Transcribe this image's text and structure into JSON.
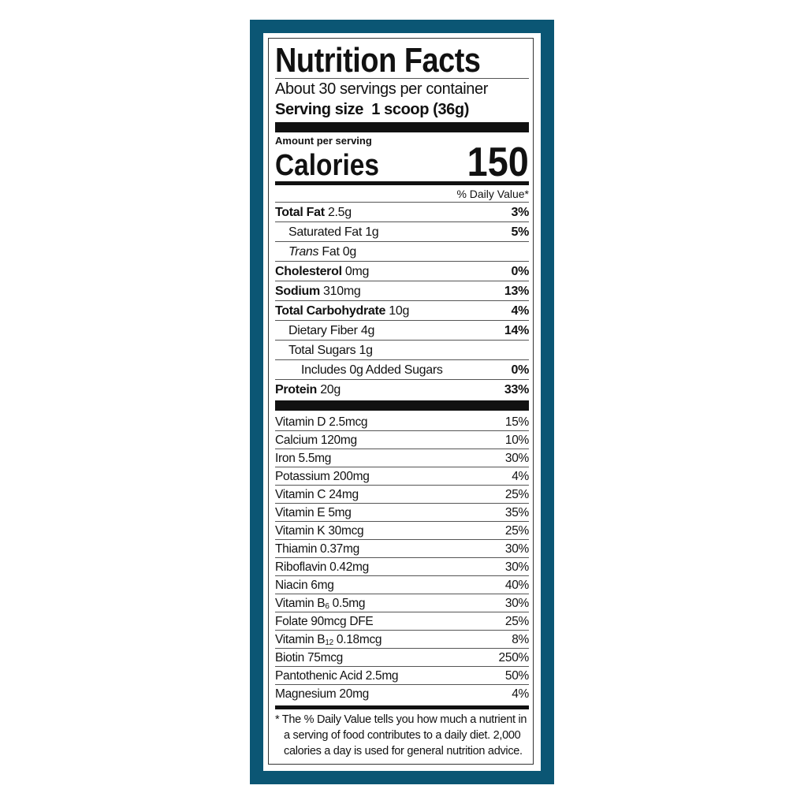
{
  "colors": {
    "border": "#0b5674",
    "text": "#111111"
  },
  "label": {
    "title": "Nutrition Facts",
    "servings": "About 30 servings per container",
    "serving_size_label": "Serving size",
    "serving_size_value": "1 scoop (36g)",
    "amount_per_serving": "Amount per serving",
    "calories_label": "Calories",
    "calories_value": "150",
    "daily_value_header": "% Daily Value*",
    "nutrients": [
      {
        "name": "Total Fat",
        "amount": "2.5g",
        "dv": "3%"
      },
      {
        "name": "Saturated Fat",
        "amount": "1g",
        "dv": "5%"
      },
      {
        "name_italic": "Trans",
        "name": "Fat",
        "amount": "0g",
        "dv": ""
      },
      {
        "name": "Cholesterol",
        "amount": "0mg",
        "dv": "0%"
      },
      {
        "name": "Sodium",
        "amount": "310mg",
        "dv": "13%"
      },
      {
        "name": "Total Carbohydrate",
        "amount": "10g",
        "dv": "4%"
      },
      {
        "name": "Dietary Fiber",
        "amount": "4g",
        "dv": "14%"
      },
      {
        "name": "Total Sugars",
        "amount": "1g",
        "dv": ""
      },
      {
        "name": "Includes 0g Added Sugars",
        "amount": "",
        "dv": "0%"
      },
      {
        "name": "Protein",
        "amount": "20g",
        "dv": "33%"
      }
    ],
    "vitamins": [
      {
        "name": "Vitamin D 2.5mcg",
        "dv": "15%"
      },
      {
        "name": "Calcium 120mg",
        "dv": "10%"
      },
      {
        "name": "Iron 5.5mg",
        "dv": "30%"
      },
      {
        "name": "Potassium 200mg",
        "dv": "4%"
      },
      {
        "name": "Vitamin C 24mg",
        "dv": "25%"
      },
      {
        "name": "Vitamin E 5mg",
        "dv": "35%"
      },
      {
        "name": "Vitamin K 30mcg",
        "dv": "25%"
      },
      {
        "name": "Thiamin 0.37mg",
        "dv": "30%"
      },
      {
        "name": "Riboflavin 0.42mg",
        "dv": "30%"
      },
      {
        "name": "Niacin 6mg",
        "dv": "40%"
      },
      {
        "name": "Vitamin B",
        "sub": "6",
        "rest": " 0.5mg",
        "dv": "30%"
      },
      {
        "name": "Folate 90mcg DFE",
        "dv": "25%"
      },
      {
        "name": "Vitamin B",
        "sub": "12",
        "rest": " 0.18mcg",
        "dv": "8%"
      },
      {
        "name": "Biotin 75mcg",
        "dv": "250%"
      },
      {
        "name": "Pantothenic Acid 2.5mg",
        "dv": "50%"
      },
      {
        "name": "Magnesium 20mg",
        "dv": "4%"
      }
    ],
    "footnote": [
      "* The % Daily Value tells you how much a nutrient in",
      "a serving of food contributes to a daily diet. 2,000",
      "calories a day is used for general nutrition advice."
    ]
  }
}
